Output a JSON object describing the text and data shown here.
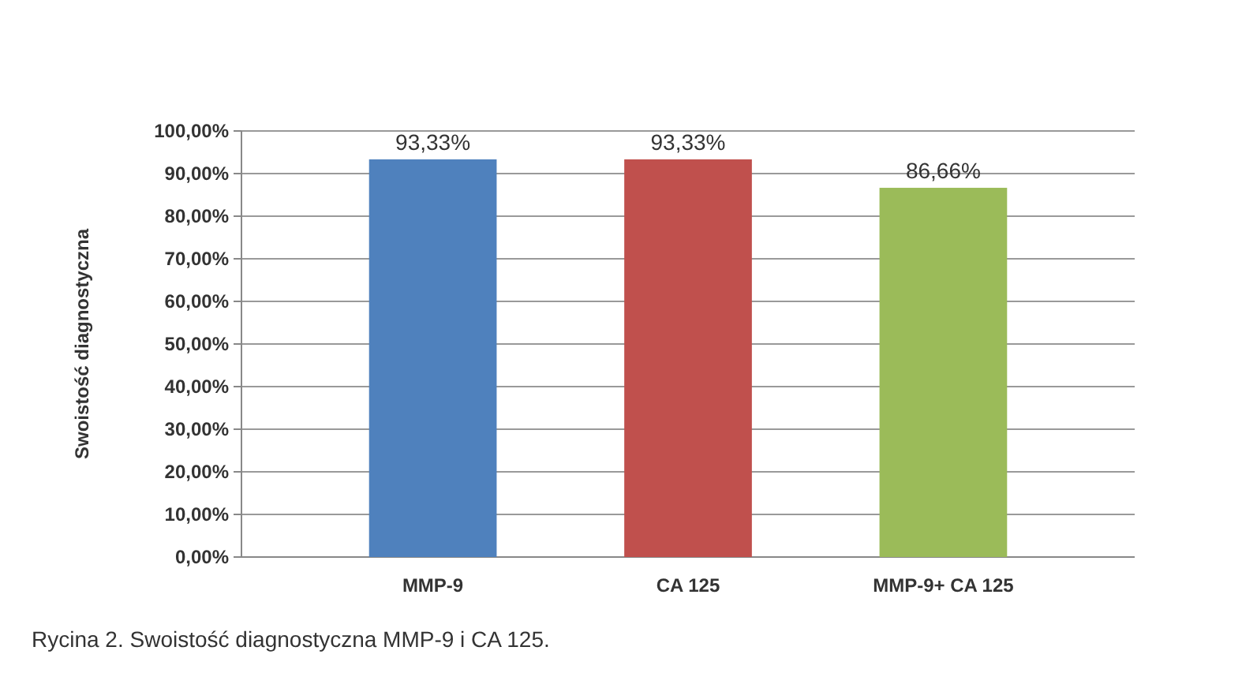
{
  "chart_data": {
    "type": "bar",
    "ylabel": "Swoistość diagnostyczna",
    "categories": [
      "MMP-9",
      "CA 125",
      "MMP-9+ CA 125"
    ],
    "values": [
      93.33,
      93.33,
      86.66
    ],
    "colors": [
      "#4f81bd",
      "#c0504d",
      "#9bbb59"
    ],
    "value_labels": [
      "93,33%",
      "93,33%",
      "86,66%"
    ],
    "ylim": [
      0,
      100
    ],
    "yticks": [
      {
        "value": 0,
        "label": "0,00%"
      },
      {
        "value": 10,
        "label": "10,00%"
      },
      {
        "value": 20,
        "label": "20,00%"
      },
      {
        "value": 30,
        "label": "30,00%"
      },
      {
        "value": 40,
        "label": "40,00%"
      },
      {
        "value": 50,
        "label": "50,00%"
      },
      {
        "value": 60,
        "label": "60,00%"
      },
      {
        "value": 70,
        "label": "70,00%"
      },
      {
        "value": 80,
        "label": "80,00%"
      },
      {
        "value": 90,
        "label": "90,00%"
      },
      {
        "value": 100,
        "label": "100,00%"
      }
    ],
    "grid": true,
    "annotations": [
      "Rycina 2. Swoistość diagnostyczna MMP-9 i CA 125."
    ]
  }
}
